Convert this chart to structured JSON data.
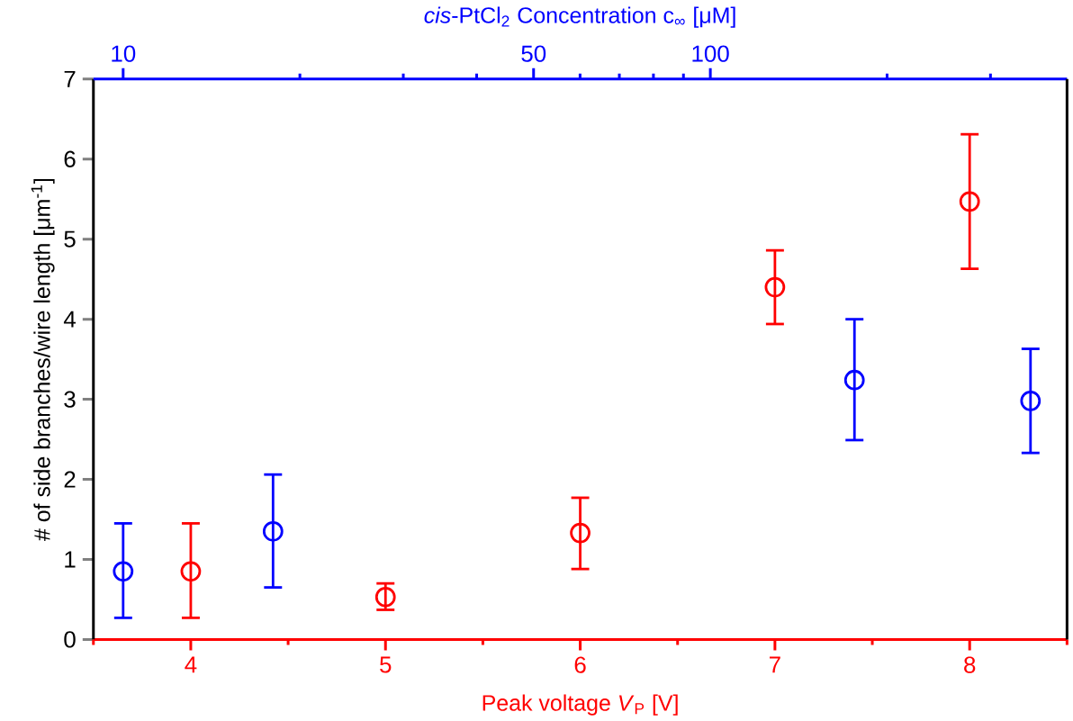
{
  "chart_data": {
    "type": "scatter",
    "xlabel": "Peak voltage *V*$_{P}$ [V]",
    "x2label": "*cis*-PtCl$_{2}$ Concentration c$_{∞}$ [μM]",
    "ylabel": "# of side branches/wire length [μm$^{-1}$]",
    "xlim": [
      3.5,
      8.5
    ],
    "xticks": [
      {
        "value": 3.5,
        "label": null
      },
      4,
      {
        "value": 4.5,
        "label": null
      },
      5,
      {
        "value": 5.5,
        "label": null
      },
      6,
      {
        "value": 6.5,
        "label": null
      },
      7,
      {
        "value": 7.5,
        "label": null
      },
      8,
      {
        "value": 8.5,
        "label": null
      }
    ],
    "x2lim": [
      8.9,
      405
    ],
    "x2ticks": [
      10,
      {
        "value": 20,
        "label": null
      },
      {
        "value": 30,
        "label": null
      },
      {
        "value": 40,
        "label": null
      },
      50,
      {
        "value": 60,
        "label": null
      },
      {
        "value": 70,
        "label": null
      },
      {
        "value": 80,
        "label": null
      },
      {
        "value": 90,
        "label": null
      },
      100,
      {
        "value": 200,
        "label": null
      },
      {
        "value": 300,
        "label": null
      }
    ],
    "log": "x2",
    "ylim": [
      0,
      7
    ],
    "yticks": [
      0,
      1,
      2,
      3,
      4,
      5,
      6,
      7
    ],
    "marker": "circle",
    "series": [
      {
        "color": "#ff0000",
        "x": [
          4,
          5,
          6,
          7,
          8
        ],
        "values": [
          0.85,
          0.53,
          1.33,
          4.4,
          5.47
        ],
        "errors": [
          [
            0.27,
            1.45
          ],
          [
            0.37,
            0.7
          ],
          [
            0.88,
            1.77
          ],
          [
            3.94,
            4.86
          ],
          [
            4.63,
            6.31
          ]
        ]
      },
      {
        "color": "#0000ff",
        "axis": "x2",
        "x": [
          10,
          18,
          176,
          351
        ],
        "values": [
          0.85,
          1.35,
          3.24,
          2.98
        ],
        "errors": [
          [
            0.27,
            1.45
          ],
          [
            0.65,
            2.06
          ],
          [
            2.49,
            4.0
          ],
          [
            2.33,
            3.63
          ]
        ]
      }
    ]
  }
}
